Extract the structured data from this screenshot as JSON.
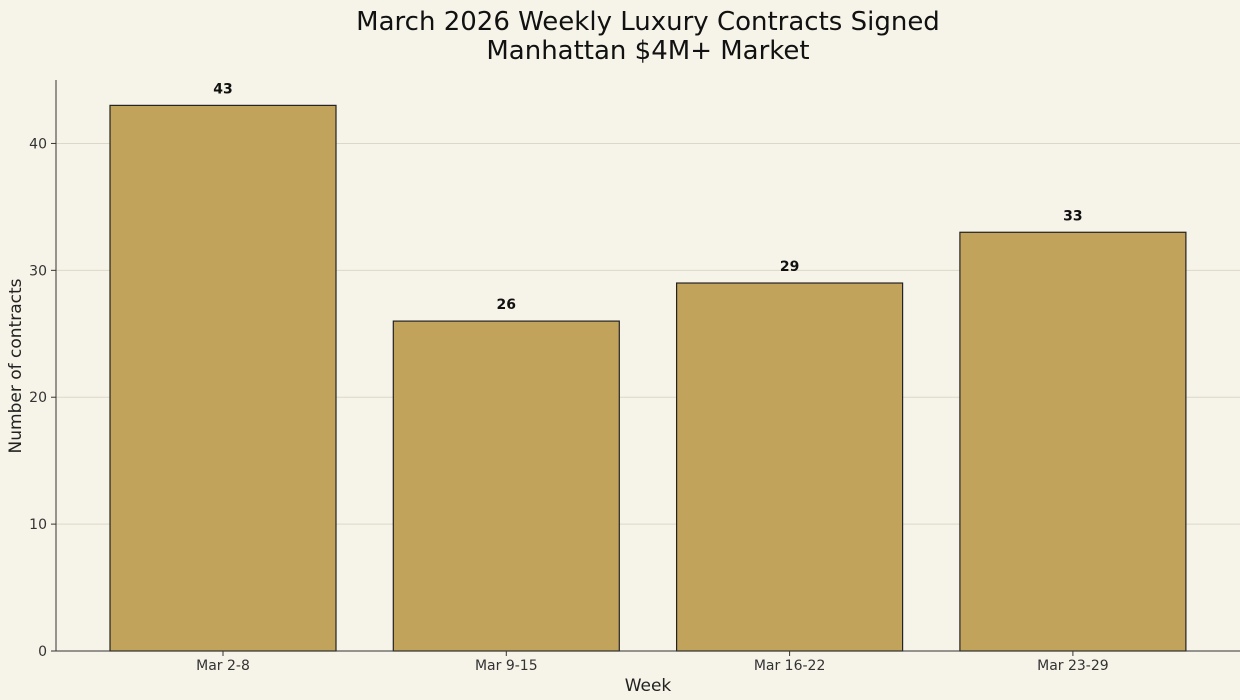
{
  "chart_data": {
    "type": "bar",
    "title": [
      "March 2026 Weekly Luxury Contracts Signed",
      "Manhattan $4M+ Market"
    ],
    "xlabel": "Week",
    "ylabel": "Number of contracts",
    "categories": [
      "Mar 2-8",
      "Mar 9-15",
      "Mar 16-22",
      "Mar 23-29"
    ],
    "values": [
      43,
      26,
      29,
      33
    ],
    "ylim": [
      0,
      45
    ],
    "yticks": [
      0,
      10,
      20,
      30,
      40
    ],
    "grid": "y",
    "colors": {
      "bar": "#c1a35b",
      "background": "#f6f3e8"
    }
  }
}
